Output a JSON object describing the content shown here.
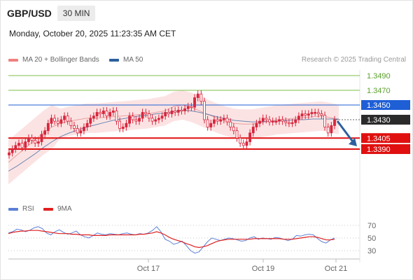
{
  "header": {
    "symbol": "GBP/USD",
    "timeframe": "30 MIN",
    "datetime": "Monday, October 20, 2025 11:23:35 AM CET"
  },
  "legend": {
    "bb_label": "MA 20 + Bollinger Bands",
    "ma50_label": "MA 50",
    "credit": "Research © 2025 Trading Central",
    "rsi_label": "RSI",
    "rsi_ma_label": "9MA"
  },
  "colors": {
    "bb": "#f08080",
    "ma50": "#2c5f9e",
    "rsi": "#5b7fd6",
    "rsi_ma": "#e02020",
    "candle": "#d7263d",
    "resistance": "#7dbf4a",
    "pivot": "#1f5fd6",
    "support": "#e01010"
  },
  "chart_data": [
    {
      "type": "line",
      "title": "GBP/USD 30 MIN",
      "x_tick_labels": [
        "Oct 17",
        "Oct 19",
        "Oct 21"
      ],
      "price_levels": [
        {
          "label": "1.3490",
          "value": 1.349,
          "kind": "resistance"
        },
        {
          "label": "1.3470",
          "value": 1.347,
          "kind": "resistance"
        },
        {
          "label": "1.3450",
          "value": 1.345,
          "kind": "pivot"
        },
        {
          "label": "1.3405",
          "value": 1.3405,
          "kind": "support"
        },
        {
          "label": "1.3390",
          "value": 1.339,
          "kind": "support"
        }
      ],
      "current_price": {
        "label": "1.3430",
        "value": 1.343
      },
      "forecast_arrow": {
        "from": 1.343,
        "to": 1.339,
        "direction": "down"
      },
      "series": [
        {
          "name": "GBP/USD",
          "values": [
            1.3385,
            1.339,
            1.3395,
            1.3398,
            1.3392,
            1.34,
            1.3405,
            1.3402,
            1.3398,
            1.34,
            1.341,
            1.3415,
            1.3425,
            1.3432,
            1.3428,
            1.3425,
            1.343,
            1.3435,
            1.3428,
            1.3422,
            1.3418,
            1.3412,
            1.3415,
            1.342,
            1.3425,
            1.3432,
            1.3435,
            1.344,
            1.3438,
            1.3442,
            1.3435,
            1.344,
            1.3442,
            1.3428,
            1.3418,
            1.342,
            1.3425,
            1.3435,
            1.343,
            1.3428,
            1.3432,
            1.344,
            1.3438,
            1.3432,
            1.3428,
            1.343,
            1.3432,
            1.3435,
            1.344,
            1.3438,
            1.3442,
            1.344,
            1.3443,
            1.3442,
            1.3445,
            1.3448,
            1.3447,
            1.346,
            1.3465,
            1.3455,
            1.343,
            1.342,
            1.3425,
            1.343,
            1.3428,
            1.343,
            1.3432,
            1.3427,
            1.342,
            1.3415,
            1.3405,
            1.3398,
            1.3395,
            1.34,
            1.3412,
            1.342,
            1.3425,
            1.3428,
            1.3432,
            1.343,
            1.3427,
            1.3428,
            1.3428,
            1.343,
            1.3428,
            1.3426,
            1.3425,
            1.3426,
            1.343,
            1.3435,
            1.3438,
            1.3436,
            1.3438,
            1.344,
            1.344,
            1.3438,
            1.3436,
            1.342,
            1.3412,
            1.3422,
            1.343
          ]
        },
        {
          "name": "MA 20",
          "values": [
            1.3372,
            1.3382,
            1.3392,
            1.3402,
            1.3412,
            1.342,
            1.3425,
            1.3428,
            1.343,
            1.3432,
            1.3432,
            1.3433,
            1.3434,
            1.3435,
            1.3436,
            1.3437,
            1.3438,
            1.344,
            1.3442,
            1.3448,
            1.345,
            1.3447,
            1.3442,
            1.3437,
            1.3432,
            1.3428,
            1.3425,
            1.3424,
            1.3424,
            1.3426,
            1.3428,
            1.343,
            1.3431,
            1.3432,
            1.3433,
            1.3434,
            1.3435,
            1.3433,
            1.343
          ]
        },
        {
          "name": "MA 50",
          "values": [
            1.336,
            1.3367,
            1.3375,
            1.3383,
            1.3392,
            1.34,
            1.3407,
            1.3412,
            1.3416,
            1.342,
            1.3423,
            1.3426,
            1.3429,
            1.3431,
            1.3433,
            1.3435,
            1.3436,
            1.3438,
            1.3439,
            1.3441,
            1.3443,
            1.3442,
            1.344,
            1.3437,
            1.3434,
            1.3431,
            1.3429,
            1.3428,
            1.3427,
            1.3427,
            1.3428,
            1.3428,
            1.3429,
            1.343,
            1.343,
            1.3431,
            1.3431,
            1.3431,
            1.3431
          ]
        }
      ]
    },
    {
      "type": "line",
      "title": "RSI",
      "y_tick_labels": [
        "70",
        "50",
        "30"
      ],
      "ylim": [
        20,
        80
      ],
      "series": [
        {
          "name": "RSI",
          "values": [
            58,
            60,
            64,
            63,
            60,
            62,
            66,
            68,
            65,
            58,
            55,
            60,
            63,
            59,
            56,
            58,
            61,
            55,
            52,
            50,
            54,
            58,
            56,
            55,
            57,
            56,
            55,
            57,
            58,
            56,
            55,
            57,
            56,
            58,
            62,
            68,
            60,
            48,
            45,
            40,
            42,
            45,
            38,
            30,
            26,
            28,
            36,
            44,
            50,
            48,
            46,
            48,
            50,
            49,
            47,
            45,
            46,
            50,
            52,
            48,
            50,
            49,
            48,
            51,
            50,
            48,
            46,
            48,
            54,
            53,
            55,
            56,
            55,
            49,
            44,
            42,
            47,
            50
          ]
        },
        {
          "name": "9MA",
          "values": [
            57,
            59,
            60,
            61,
            61,
            62,
            62,
            62,
            61,
            60,
            59,
            58,
            57,
            57,
            57,
            56,
            56,
            55,
            55,
            55,
            54,
            54,
            54,
            54,
            55,
            55,
            55,
            55,
            55,
            55,
            55,
            56,
            56,
            57,
            58,
            60,
            58,
            55,
            51,
            48,
            46,
            44,
            41,
            39,
            36,
            35,
            36,
            38,
            41,
            44,
            46,
            47,
            48,
            48,
            48,
            48,
            48,
            48,
            49,
            49,
            49,
            49,
            49,
            49,
            49,
            48,
            48,
            48,
            49,
            50,
            51,
            52,
            52,
            51,
            49,
            47,
            47,
            48
          ]
        }
      ]
    }
  ]
}
